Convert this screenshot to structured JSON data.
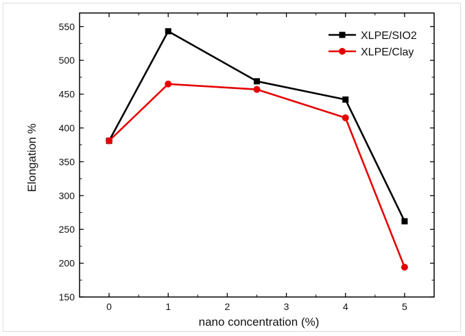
{
  "chart_data": {
    "type": "line",
    "title": "",
    "xlabel": "nano concentration (%)",
    "ylabel": "Elongation %",
    "xlim": [
      -0.5,
      5.5
    ],
    "ylim": [
      150,
      570
    ],
    "xticks": [
      0,
      1,
      2,
      3,
      4,
      5
    ],
    "yticks": [
      150,
      200,
      250,
      300,
      350,
      400,
      450,
      500,
      550
    ],
    "legend_position": "top-right",
    "grid": false,
    "series": [
      {
        "name": "XLPE/SIO2",
        "color": "#000000",
        "marker": "square",
        "x": [
          0,
          1,
          2.5,
          4,
          5
        ],
        "y": [
          381,
          543,
          469,
          442,
          262
        ]
      },
      {
        "name": "XLPE/Clay",
        "color": "#e60000",
        "marker": "circle",
        "x": [
          0,
          1,
          2.5,
          4,
          5
        ],
        "y": [
          381,
          465,
          457,
          415,
          194
        ]
      }
    ]
  }
}
